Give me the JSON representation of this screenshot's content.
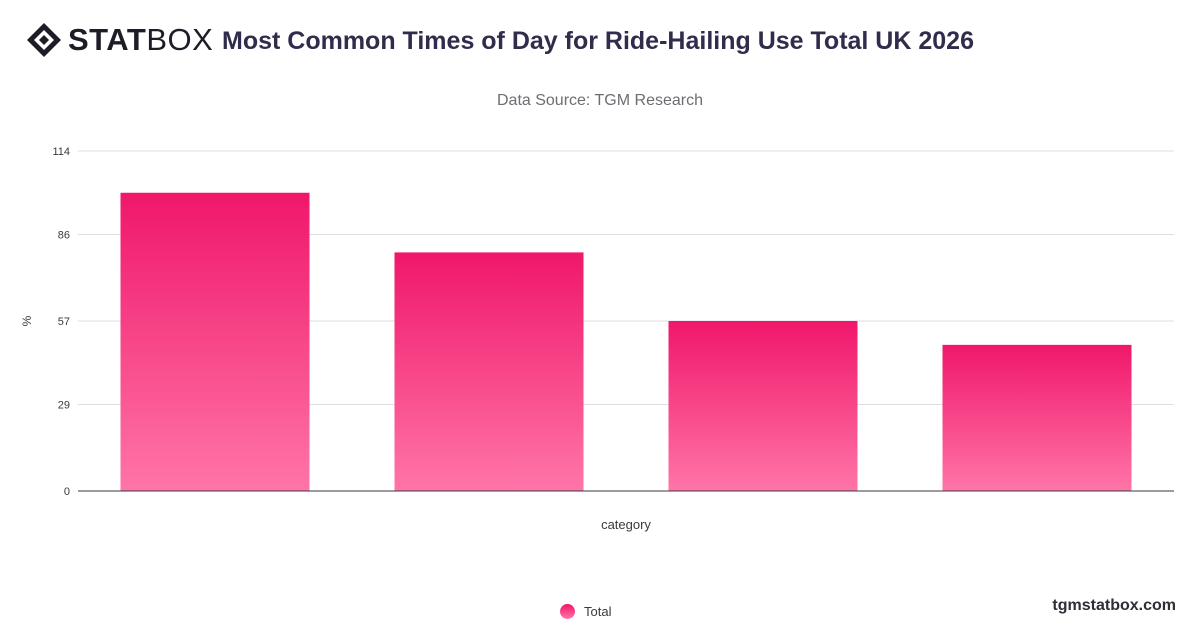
{
  "brand": {
    "stat": "STAT",
    "box": "BOX"
  },
  "title": "Most Common Times of Day for Ride-Hailing Use Total UK 2026",
  "subtitle": "Data Source: TGM Research",
  "footer": {
    "site": "tgmstatbox.com"
  },
  "chart_data": {
    "type": "bar",
    "categories": [
      "",
      "",
      "",
      ""
    ],
    "series": [
      {
        "name": "Total",
        "values": [
          100,
          80,
          57,
          49
        ],
        "color": "#f0176a",
        "color_light": "#ff75a8"
      }
    ],
    "xlabel": "category",
    "ylabel": "%",
    "yticks": [
      0,
      29,
      57,
      86,
      114
    ],
    "ylim": [
      0,
      114
    ],
    "grid": true,
    "legend_position": "bottom-center"
  }
}
